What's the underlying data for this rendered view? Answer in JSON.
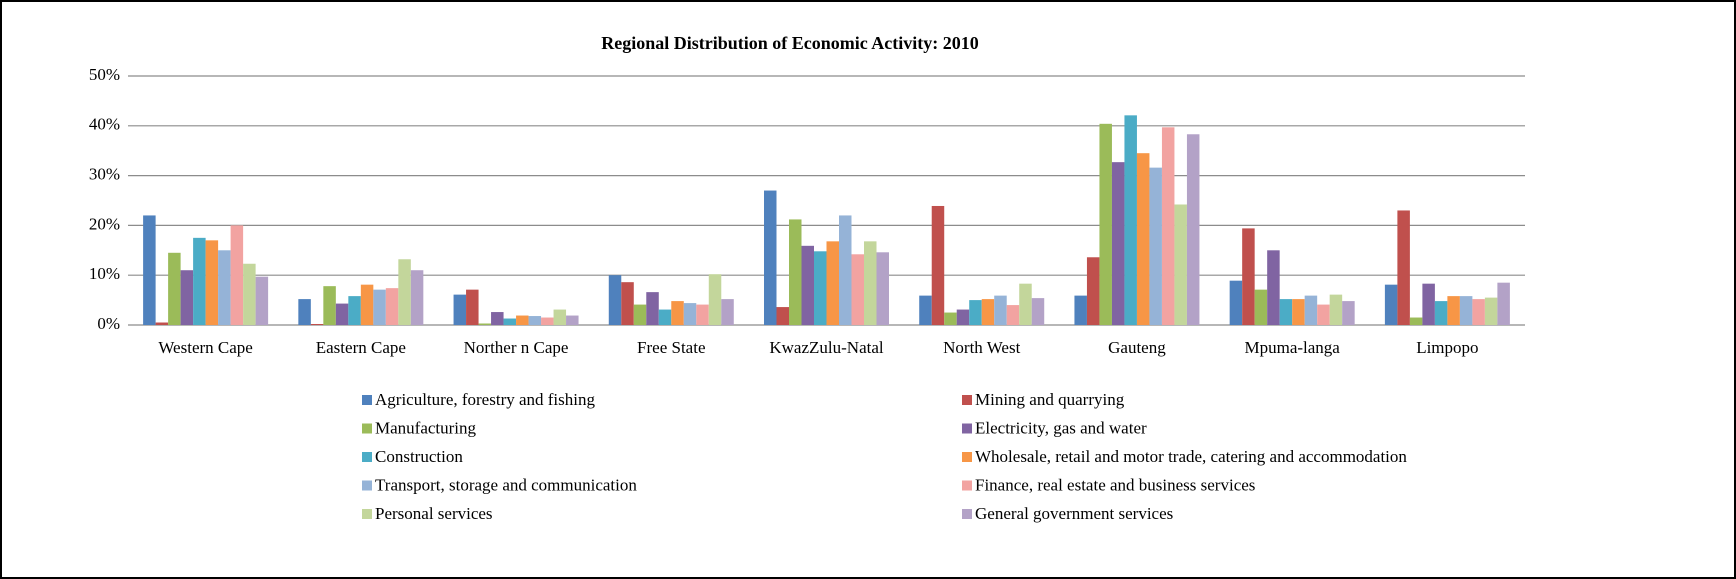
{
  "chart_data": {
    "type": "bar",
    "title": "Regional Distribution of Economic Activity: 2010",
    "categories": [
      "Western Cape",
      "Eastern Cape",
      "Norther n Cape",
      "Free State",
      "KwazZulu-Natal",
      "North West",
      "Gauteng",
      "Mpuma-langa",
      "Limpopo"
    ],
    "series": [
      {
        "name": "Agriculture, forestry and fishing",
        "color": "#4f81bd",
        "values": [
          22,
          5.2,
          6.1,
          10,
          27,
          5.9,
          5.9,
          8.9,
          8.1
        ]
      },
      {
        "name": "Mining and quarrying",
        "color": "#c0504d",
        "values": [
          0.5,
          0.2,
          7.1,
          8.6,
          3.6,
          23.9,
          13.6,
          19.4,
          23
        ]
      },
      {
        "name": "Manufacturing",
        "color": "#9bbb59",
        "values": [
          14.5,
          7.8,
          0.3,
          4.1,
          21.2,
          2.5,
          40.4,
          7.1,
          1.5
        ]
      },
      {
        "name": "Electricity, gas and water",
        "color": "#8064a2",
        "values": [
          11,
          4.3,
          2.6,
          6.6,
          15.9,
          3.1,
          32.7,
          15,
          8.3
        ]
      },
      {
        "name": "Construction",
        "color": "#4bacc6",
        "values": [
          17.5,
          5.8,
          1.3,
          3.1,
          14.8,
          5,
          42.1,
          5.2,
          4.8
        ]
      },
      {
        "name": "Wholesale, retail and motor trade, catering and accommodation",
        "color": "#f79646",
        "values": [
          17,
          8.1,
          1.9,
          4.8,
          16.8,
          5.2,
          34.5,
          5.2,
          5.8
        ]
      },
      {
        "name": "Transport, storage and communication",
        "color": "#95b3d7",
        "values": [
          15,
          7.1,
          1.8,
          4.4,
          22,
          5.9,
          31.6,
          5.9,
          5.8
        ]
      },
      {
        "name": "Finance, real estate and business services",
        "color": "#f2a3a1",
        "values": [
          20,
          7.4,
          1.5,
          4.1,
          14.2,
          4,
          39.7,
          4.1,
          5.2
        ]
      },
      {
        "name": "Personal services",
        "color": "#c3d69b",
        "values": [
          12.3,
          13.2,
          3.1,
          10.2,
          16.8,
          8.3,
          24.2,
          6.1,
          5.5
        ]
      },
      {
        "name": "General government services",
        "color": "#b3a2c7",
        "values": [
          9.7,
          11,
          1.9,
          5.2,
          14.6,
          5.4,
          38.3,
          4.8,
          8.5
        ]
      }
    ],
    "ylim": [
      0,
      50
    ],
    "yticks": [
      {
        "value": 0,
        "label": "0%"
      },
      {
        "value": 10,
        "label": "10%"
      },
      {
        "value": 20,
        "label": "20%"
      },
      {
        "value": 30,
        "label": "30%"
      },
      {
        "value": 40,
        "label": "40%"
      },
      {
        "value": 50,
        "label": "50%"
      }
    ],
    "grid": true,
    "legend": "bottom"
  }
}
